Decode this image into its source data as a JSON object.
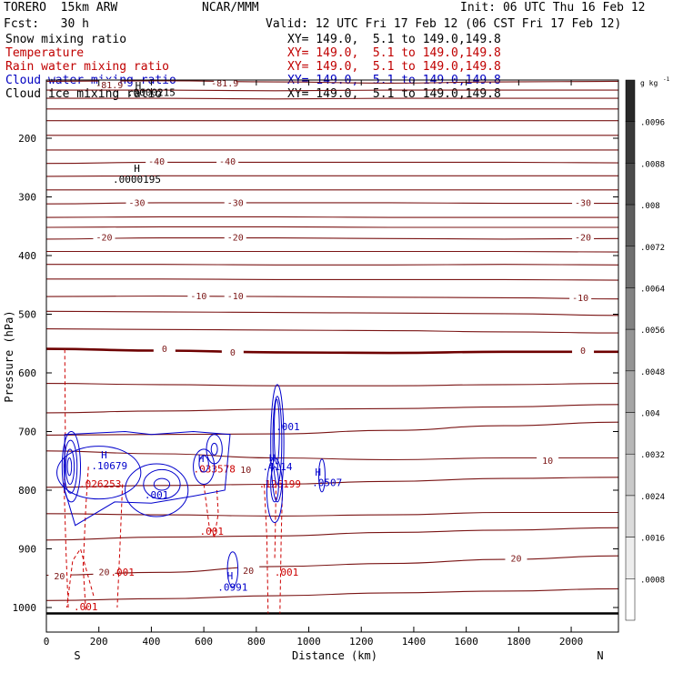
{
  "header": {
    "title": "TORERO  15km ARW",
    "center": "NCAR/MMM",
    "init": "Init: 06 UTC Thu 16 Feb 12",
    "fcst": "Fcst:   30 h",
    "valid": "Valid: 12 UTC Fri 17 Feb 12 (06 CST Fri 17 Feb 12)"
  },
  "fields": [
    {
      "name": "Snow mixing ratio",
      "xy": "XY= 149.0,  5.1 to 149.0,149.8",
      "color": "#000000"
    },
    {
      "name": "Temperature",
      "xy": "XY= 149.0,  5.1 to 149.0,149.8",
      "color": "#c00000"
    },
    {
      "name": "Rain water mixing ratio",
      "xy": "XY= 149.0,  5.1 to 149.0,149.8",
      "color": "#c00000"
    },
    {
      "name": "Cloud water mixing ratio",
      "xy": "XY= 149.0,  5.1 to 149.0,149.8",
      "color": "#0000c0"
    },
    {
      "name": "Cloud ice mixing ratio",
      "xy": "XY= 149.0,  5.1 to 149.0,149.8",
      "color": "#000000"
    }
  ],
  "colors": {
    "temperature": "#7a1414",
    "zero_isotherm": "#6e0000",
    "rain": "#cc0000",
    "cloud_water": "#0000cc",
    "ground": "#000000"
  },
  "chart_data": {
    "type": "heatmap",
    "xlabel": "Distance (km)",
    "ylabel": "Pressure (hPa)",
    "xlim": [
      0,
      2180
    ],
    "ylim": [
      1010,
      100
    ],
    "x_ticks": [
      0,
      200,
      400,
      600,
      800,
      1000,
      1200,
      1400,
      1600,
      1800,
      2000
    ],
    "y_ticks": [
      200,
      300,
      400,
      500,
      600,
      700,
      800,
      900,
      1000
    ],
    "endpoints": {
      "left": "S",
      "right": "N"
    },
    "colorbar": {
      "unit": "g kg",
      "unit_exp": "-1",
      "labels": [
        ".0096",
        ".0088",
        ".008",
        ".0072",
        ".0064",
        ".0056",
        ".0048",
        ".004",
        ".0032",
        ".0024",
        ".0016",
        ".0008"
      ]
    },
    "temperature_labels": [
      {
        "text": "-81.9",
        "x": 240,
        "p": 110
      },
      {
        "text": "-81.9",
        "x": 680,
        "p": 107
      },
      {
        "text": "-40",
        "x": 420,
        "p": 240
      },
      {
        "text": "-40",
        "x": 690,
        "p": 240
      },
      {
        "text": "-30",
        "x": 345,
        "p": 311
      },
      {
        "text": "-30",
        "x": 720,
        "p": 311
      },
      {
        "text": "-30",
        "x": 2045,
        "p": 311
      },
      {
        "text": "-20",
        "x": 220,
        "p": 370
      },
      {
        "text": "-20",
        "x": 720,
        "p": 370
      },
      {
        "text": "-20",
        "x": 2045,
        "p": 370
      },
      {
        "text": "-10",
        "x": 580,
        "p": 470
      },
      {
        "text": "-10",
        "x": 720,
        "p": 470
      },
      {
        "text": "-10",
        "x": 2035,
        "p": 473
      },
      {
        "text": "0",
        "x": 450,
        "p": 560
      },
      {
        "text": "0",
        "x": 710,
        "p": 566
      },
      {
        "text": "0",
        "x": 2045,
        "p": 563
      },
      {
        "text": "10",
        "x": 760,
        "p": 766
      },
      {
        "text": "10",
        "x": 1910,
        "p": 750
      },
      {
        "text": "20",
        "x": 50,
        "p": 947
      },
      {
        "text": "20",
        "x": 220,
        "p": 940
      },
      {
        "text": "20",
        "x": 770,
        "p": 938
      },
      {
        "text": "20",
        "x": 1790,
        "p": 917
      }
    ],
    "temperature_isotherms": [
      {
        "name": "-81.9",
        "p": [
          103,
          102,
          104,
          106,
          104,
          103
        ]
      },
      {
        "p": [
          118,
          118,
          119,
          118,
          118,
          118
        ]
      },
      {
        "p": [
          132,
          132,
          133,
          132,
          132,
          132
        ]
      },
      {
        "p": [
          150,
          150,
          150,
          150,
          150,
          150
        ]
      },
      {
        "p": [
          170,
          170,
          170,
          170,
          170,
          170
        ]
      },
      {
        "p": [
          195,
          195,
          195,
          195,
          195,
          195
        ]
      },
      {
        "p": [
          220,
          220,
          220,
          220,
          220,
          220
        ]
      },
      {
        "name": "-40",
        "p": [
          243,
          241,
          241,
          241,
          241,
          242
        ]
      },
      {
        "p": [
          265,
          264,
          264,
          264,
          264,
          264
        ]
      },
      {
        "p": [
          288,
          288,
          288,
          288,
          288,
          288
        ]
      },
      {
        "name": "-30",
        "p": [
          312,
          310,
          310,
          310,
          311,
          311
        ]
      },
      {
        "p": [
          335,
          334,
          334,
          335,
          335,
          335
        ]
      },
      {
        "p": [
          352,
          351,
          351,
          352,
          352,
          352
        ]
      },
      {
        "name": "-20",
        "p": [
          372,
          370,
          370,
          371,
          372,
          371
        ]
      },
      {
        "p": [
          393,
          393,
          393,
          393,
          393,
          394
        ]
      },
      {
        "p": [
          415,
          415,
          416,
          416,
          415,
          416
        ]
      },
      {
        "p": [
          440,
          440,
          441,
          441,
          441,
          442
        ]
      },
      {
        "name": "-10",
        "p": [
          470,
          469,
          470,
          471,
          472,
          474
        ]
      },
      {
        "p": [
          495,
          496,
          497,
          498,
          499,
          502
        ]
      },
      {
        "p": [
          525,
          526,
          527,
          528,
          530,
          532
        ]
      },
      {
        "name": "0",
        "p": [
          559,
          562,
          565,
          566,
          564,
          564
        ]
      },
      {
        "p": [
          618,
          620,
          622,
          622,
          620,
          618
        ]
      },
      {
        "p": [
          668,
          665,
          662,
          661,
          658,
          654
        ]
      },
      {
        "p": [
          706,
          705,
          704,
          698,
          690,
          684
        ]
      },
      {
        "name": "10",
        "p": [
          733,
          738,
          745,
          748,
          745,
          745
        ]
      },
      {
        "p": [
          795,
          792,
          790,
          785,
          780,
          778
        ]
      },
      {
        "p": [
          840,
          842,
          844,
          842,
          838,
          838
        ]
      },
      {
        "p": [
          885,
          880,
          878,
          872,
          868,
          864
        ]
      },
      {
        "name": "20",
        "p": [
          945,
          940,
          930,
          925,
          918,
          912
        ]
      },
      {
        "p": [
          988,
          985,
          980,
          975,
          972,
          968
        ]
      }
    ],
    "rain_labels": [
      {
        "text": ".026253",
        "x": 205,
        "p": 795
      },
      {
        "text": ".033578",
        "x": 640,
        "p": 770
      },
      {
        "text": ".126199",
        "x": 890,
        "p": 795
      },
      {
        "text": ".001",
        "x": 630,
        "p": 876
      },
      {
        "text": ".001",
        "x": 290,
        "p": 946
      },
      {
        "text": ".001",
        "x": 915,
        "p": 946
      },
      {
        "text": ".001",
        "x": 150,
        "p": 1005
      }
    ],
    "cloud_water_labels": [
      {
        "text": ".10679",
        "x": 240,
        "p": 764
      },
      {
        "text": ".001",
        "x": 420,
        "p": 814
      },
      {
        "text": ".001",
        "x": 920,
        "p": 698
      },
      {
        "text": ".4114",
        "x": 880,
        "p": 766
      },
      {
        "text": ".0507",
        "x": 1070,
        "p": 793
      },
      {
        "text": ".0991",
        "x": 710,
        "p": 971
      }
    ],
    "extrema": [
      {
        "text": "H",
        "x": 345,
        "p": 257,
        "color": "#000000"
      },
      {
        "text": ".0000195",
        "x": 345,
        "p": 276,
        "color": "#000000"
      },
      {
        "text": "H",
        "x": 350,
        "p": 116,
        "color": "#000000"
      },
      {
        "text": ".0000215",
        "x": 400,
        "p": 128,
        "color": "#000000"
      },
      {
        "text": "H",
        "x": 220,
        "p": 746,
        "color": "#0000cc"
      },
      {
        "text": "H",
        "x": 590,
        "p": 752,
        "color": "#0000cc"
      },
      {
        "text": "H",
        "x": 860,
        "p": 751,
        "color": "#0000cc"
      },
      {
        "text": "H",
        "x": 1035,
        "p": 775,
        "color": "#0000cc"
      },
      {
        "text": "H",
        "x": 700,
        "p": 952,
        "color": "#0000cc"
      }
    ]
  }
}
